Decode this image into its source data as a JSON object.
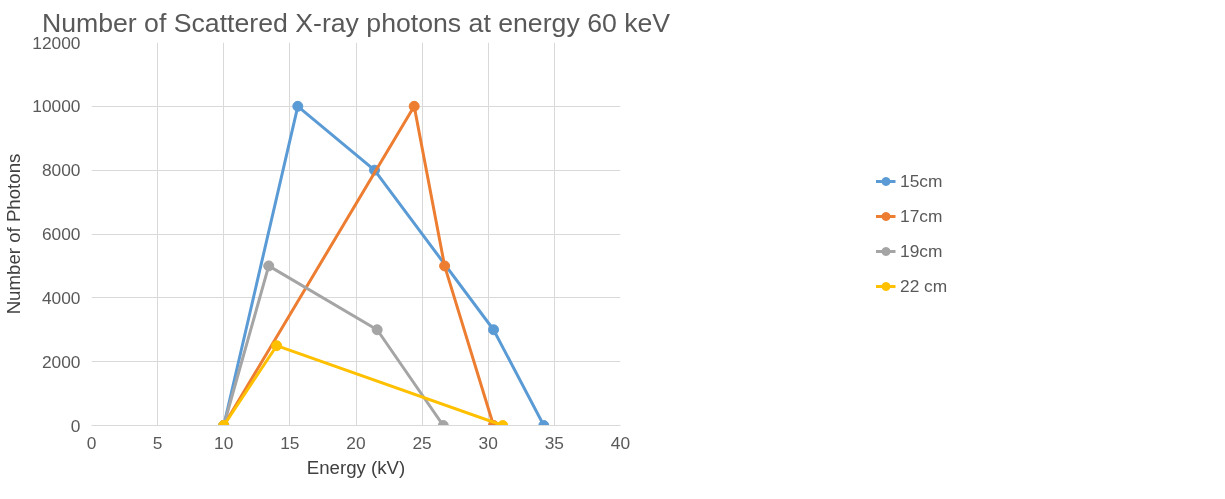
{
  "chart_data": {
    "type": "line",
    "title": "Number of Scattered X-ray photons at energy 60 keV",
    "xlabel": "Energy (kV)",
    "ylabel": "Number of Photons",
    "xlim": [
      0,
      40
    ],
    "xticks": [
      0,
      5,
      10,
      15,
      20,
      25,
      30,
      35,
      40
    ],
    "ylim": [
      0,
      12000
    ],
    "yticks": [
      0,
      2000,
      4000,
      6000,
      8000,
      10000,
      12000
    ],
    "grid": true,
    "legend": "right",
    "marker": "circle",
    "line_style": "solid",
    "series": [
      {
        "name": "15cm",
        "color": "#5b9bd5",
        "x": [
          10,
          15.6,
          21.4,
          30.4,
          34.2
        ],
        "values": [
          0,
          10000,
          8000,
          3000,
          0
        ]
      },
      {
        "name": "17cm",
        "color": "#ed7d31",
        "x": [
          10,
          24.4,
          26.7,
          30.4
        ],
        "values": [
          0,
          10000,
          5000,
          0
        ]
      },
      {
        "name": "19cm",
        "color": "#a5a5a5",
        "x": [
          10,
          13.4,
          21.6,
          26.6
        ],
        "values": [
          0,
          5000,
          3000,
          0
        ]
      },
      {
        "name": "22 cm",
        "color": "#ffc000",
        "x": [
          10,
          14.0,
          31.1
        ],
        "values": [
          0,
          2500,
          0
        ]
      }
    ]
  }
}
